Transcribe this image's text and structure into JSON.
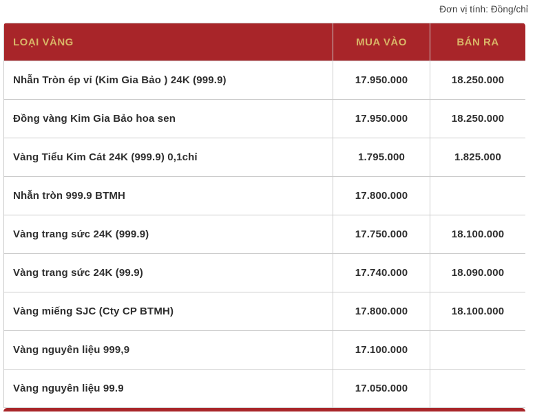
{
  "header": {
    "unit_label": "Đơn vị tính: Đồng/chỉ"
  },
  "table": {
    "columns": [
      "LOẠI VÀNG",
      "MUA VÀO",
      "BÁN RA"
    ],
    "rows": [
      {
        "name": "Nhẫn Tròn ép vỉ (Kim Gia Bảo ) 24K (999.9)",
        "buy": "17.950.000",
        "sell": "18.250.000"
      },
      {
        "name": "Đồng vàng Kim Gia Bảo hoa sen",
        "buy": "17.950.000",
        "sell": "18.250.000"
      },
      {
        "name": "Vàng Tiểu Kim Cát 24K (999.9) 0,1chỉ",
        "buy": "1.795.000",
        "sell": "1.825.000"
      },
      {
        "name": "Nhẫn tròn 999.9 BTMH",
        "buy": "17.800.000",
        "sell": ""
      },
      {
        "name": "Vàng trang sức 24K (999.9)",
        "buy": "17.750.000",
        "sell": "18.100.000"
      },
      {
        "name": "Vàng trang sức 24K (99.9)",
        "buy": "17.740.000",
        "sell": "18.090.000"
      },
      {
        "name": "Vàng miếng SJC (Cty CP BTMH)",
        "buy": "17.800.000",
        "sell": "18.100.000"
      },
      {
        "name": "Vàng nguyên liệu 999,9",
        "buy": "17.100.000",
        "sell": ""
      },
      {
        "name": "Vàng nguyên liệu 99.9",
        "buy": "17.050.000",
        "sell": ""
      }
    ]
  },
  "colors": {
    "header_bg": "#a82529",
    "header_text": "#d9b567",
    "row_border": "#cccccc",
    "body_text": "#2e2e2e"
  }
}
